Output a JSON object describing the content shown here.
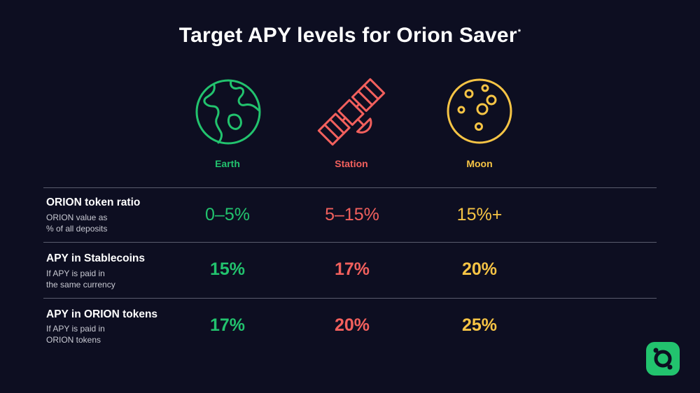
{
  "title": {
    "text": "Target APY levels for Orion Saver",
    "mark": "*"
  },
  "tiers": [
    {
      "label": "Earth",
      "icon": "earth-icon",
      "color": "#22c36e"
    },
    {
      "label": "Station",
      "icon": "satellite-icon",
      "color": "#f2605d"
    },
    {
      "label": "Moon",
      "icon": "moon-icon",
      "color": "#f6c445"
    }
  ],
  "rows": [
    {
      "title": "ORION token ratio",
      "subtitle_lines": [
        "ORION value as",
        "% of all deposits"
      ],
      "values": [
        "0–5%",
        "5–15%",
        "15%+"
      ]
    },
    {
      "title": "APY in Stablecoins",
      "subtitle_lines": [
        "If APY is paid in",
        "the same currency"
      ],
      "values": [
        "15%",
        "17%",
        "20%"
      ]
    },
    {
      "title": "APY in ORION tokens",
      "subtitle_lines": [
        "If APY is paid in",
        "ORION tokens"
      ],
      "values": [
        "17%",
        "20%",
        "25%"
      ]
    }
  ],
  "logo": {
    "icon": "orion-logo-icon",
    "color": "#22c36e"
  }
}
